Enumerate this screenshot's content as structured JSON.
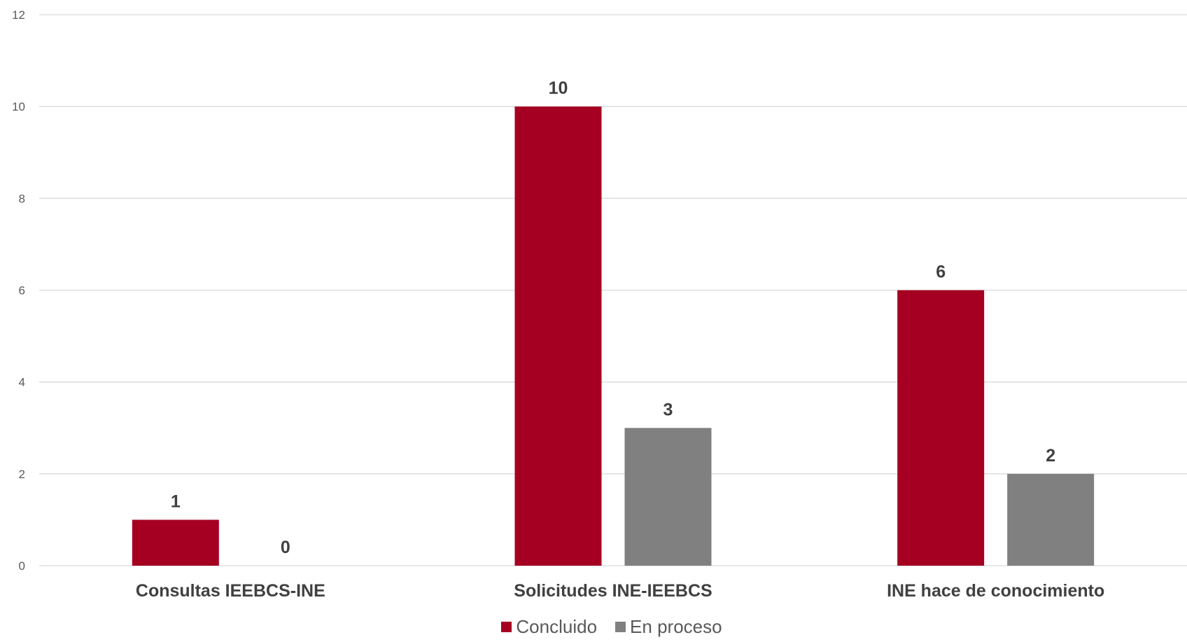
{
  "chart_data": {
    "type": "bar",
    "categories": [
      "Consultas IEEBCS-INE",
      "Solicitudes INE-IEEBCS",
      "INE hace de conocimiento"
    ],
    "series": [
      {
        "name": "Concluido",
        "values": [
          1,
          10,
          6
        ],
        "color": "#A50021"
      },
      {
        "name": "En proceso",
        "values": [
          0,
          3,
          2
        ],
        "color": "#808080"
      }
    ],
    "yticks": [
      "0",
      "2",
      "4",
      "6",
      "8",
      "10",
      "12"
    ],
    "ylim": [
      0,
      12
    ],
    "grid": true,
    "legend_position": "bottom",
    "title": "",
    "xlabel": "",
    "ylabel": ""
  }
}
